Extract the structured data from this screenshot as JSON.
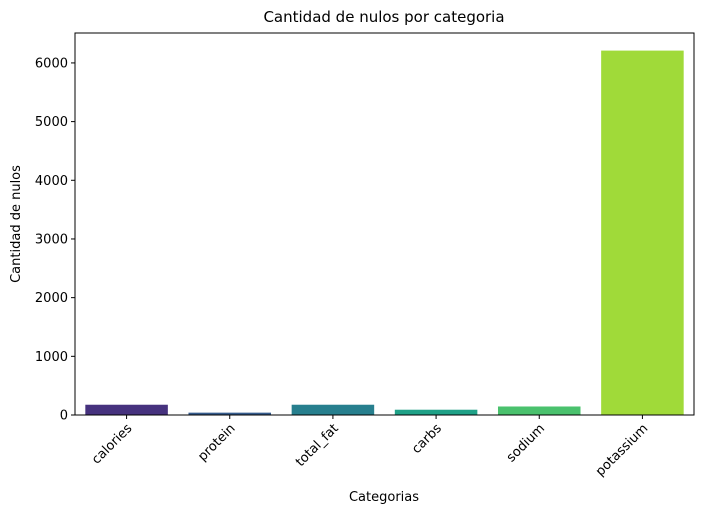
{
  "chart_data": {
    "type": "bar",
    "title": "Cantidad de nulos por categoria",
    "xlabel": "Categorias",
    "ylabel": "Cantidad de nulos",
    "categories": [
      "calories",
      "protein",
      "total_fat",
      "carbs",
      "sodium",
      "potassium"
    ],
    "values": [
      175,
      40,
      175,
      90,
      145,
      6210
    ],
    "colors": [
      "#46327e",
      "#365c8d",
      "#277f8e",
      "#1fa187",
      "#4ac16d",
      "#a0da39"
    ],
    "ylim": [
      0,
      6510
    ],
    "yticks": [
      0,
      1000,
      2000,
      3000,
      4000,
      5000,
      6000
    ],
    "grid": false,
    "legend": "none"
  }
}
